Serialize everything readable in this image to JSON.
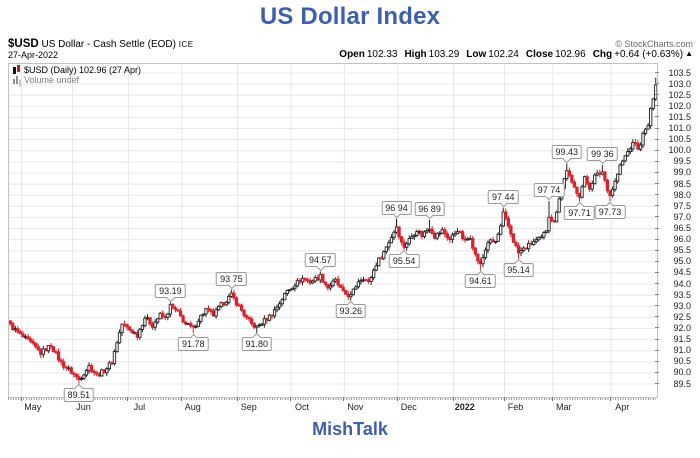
{
  "page": {
    "title": "US Dollar Index",
    "footer": "MishTalk",
    "accent_color": "#3E5FA9"
  },
  "header": {
    "symbol": "$USD",
    "description": "US Dollar - Cash Settle (EOD)",
    "exchange": "ICE",
    "date": "27-Apr-2022",
    "copyright": "© StockCharts.com",
    "quote": [
      {
        "label": "Open",
        "value": "102.33"
      },
      {
        "label": "High",
        "value": "103.29"
      },
      {
        "label": "Low",
        "value": "102.24"
      },
      {
        "label": "Close",
        "value": "102.96"
      }
    ],
    "chg_label": "Chg",
    "chg_value": "+0.64 (+0.63%)",
    "chg_arrow": "▲"
  },
  "legend": {
    "series": "$USD (Daily) 102.96 (27 Apr)",
    "volume": "Volume undef"
  },
  "chart_data": {
    "type": "candlestick",
    "symbol": "$USD",
    "period": "Daily",
    "date_range": "Apr 2021 - 27 Apr 2022",
    "total_days": 255,
    "y_axis": {
      "min": 89.5,
      "max": 103.5,
      "step": 0.5
    },
    "grid": true,
    "last_candle": {
      "open": 102.33,
      "high": 103.29,
      "low": 102.24,
      "close": 102.96
    },
    "months": [
      {
        "label": "May",
        "day": 5
      },
      {
        "label": "Jun",
        "day": 25
      },
      {
        "label": "Jul",
        "day": 47
      },
      {
        "label": "Aug",
        "day": 68
      },
      {
        "label": "Sep",
        "day": 90
      },
      {
        "label": "Oct",
        "day": 111
      },
      {
        "label": "Nov",
        "day": 132
      },
      {
        "label": "Dec",
        "day": 153
      },
      {
        "label": "2022",
        "day": 175,
        "bold": true
      },
      {
        "label": "Feb",
        "day": 195
      },
      {
        "label": "Mar",
        "day": 214
      },
      {
        "label": "Apr",
        "day": 237
      }
    ],
    "waypoints": [
      [
        0,
        92.15
      ],
      [
        4,
        91.7
      ],
      [
        8,
        91.35
      ],
      [
        12,
        90.9
      ],
      [
        16,
        91.25
      ],
      [
        20,
        90.45
      ],
      [
        24,
        90.05
      ],
      [
        27,
        89.7
      ],
      [
        29,
        90.0
      ],
      [
        31,
        90.3
      ],
      [
        34,
        89.9
      ],
      [
        37,
        90.1
      ],
      [
        40,
        90.5
      ],
      [
        42,
        91.4
      ],
      [
        44,
        92.2
      ],
      [
        47,
        91.95
      ],
      [
        50,
        91.7
      ],
      [
        53,
        92.5
      ],
      [
        56,
        92.15
      ],
      [
        59,
        92.6
      ],
      [
        61,
        92.45
      ],
      [
        63,
        93.0
      ],
      [
        66,
        92.7
      ],
      [
        69,
        92.2
      ],
      [
        72,
        92.0
      ],
      [
        74,
        92.4
      ],
      [
        77,
        92.85
      ],
      [
        80,
        92.6
      ],
      [
        83,
        93.05
      ],
      [
        87,
        93.5
      ],
      [
        90,
        93.0
      ],
      [
        93,
        92.45
      ],
      [
        95,
        92.2
      ],
      [
        97,
        92.05
      ],
      [
        100,
        92.35
      ],
      [
        103,
        92.65
      ],
      [
        106,
        93.15
      ],
      [
        109,
        93.7
      ],
      [
        112,
        94.0
      ],
      [
        115,
        94.25
      ],
      [
        118,
        94.1
      ],
      [
        122,
        94.35
      ],
      [
        125,
        93.85
      ],
      [
        128,
        94.15
      ],
      [
        131,
        93.6
      ],
      [
        134,
        93.45
      ],
      [
        137,
        94.15
      ],
      [
        139,
        94.3
      ],
      [
        141,
        94.05
      ],
      [
        144,
        94.9
      ],
      [
        147,
        95.45
      ],
      [
        149,
        95.9
      ],
      [
        152,
        96.6
      ],
      [
        154,
        95.85
      ],
      [
        155,
        95.7
      ],
      [
        158,
        96.15
      ],
      [
        160,
        96.45
      ],
      [
        162,
        96.2
      ],
      [
        165,
        96.55
      ],
      [
        167,
        96.15
      ],
      [
        170,
        96.4
      ],
      [
        173,
        96.0
      ],
      [
        176,
        96.45
      ],
      [
        179,
        95.9
      ],
      [
        181,
        96.15
      ],
      [
        183,
        95.3
      ],
      [
        185,
        94.85
      ],
      [
        188,
        95.9
      ],
      [
        191,
        95.9
      ],
      [
        193,
        96.55
      ],
      [
        194,
        97.15
      ],
      [
        196,
        96.6
      ],
      [
        198,
        95.95
      ],
      [
        200,
        95.4
      ],
      [
        203,
        95.65
      ],
      [
        206,
        95.9
      ],
      [
        209,
        96.05
      ],
      [
        211,
        96.45
      ],
      [
        212,
        97.1
      ],
      [
        214,
        96.75
      ],
      [
        216,
        97.9
      ],
      [
        219,
        99.15
      ],
      [
        221,
        98.5
      ],
      [
        224,
        98.0
      ],
      [
        226,
        98.75
      ],
      [
        228,
        98.35
      ],
      [
        230,
        98.85
      ],
      [
        233,
        99.05
      ],
      [
        235,
        98.3
      ],
      [
        236,
        98.0
      ],
      [
        238,
        98.6
      ],
      [
        240,
        99.3
      ],
      [
        242,
        99.75
      ],
      [
        244,
        100.15
      ],
      [
        246,
        100.4
      ],
      [
        247,
        100.0
      ],
      [
        249,
        100.7
      ],
      [
        251,
        101.15
      ],
      [
        252,
        101.8
      ],
      [
        253,
        102.35
      ],
      [
        254,
        102.96
      ]
    ],
    "annotations": [
      {
        "day": 27,
        "type": "low",
        "price": 89.51,
        "label": "89.51"
      },
      {
        "day": 63,
        "type": "high",
        "price": 93.19,
        "label": "93.19"
      },
      {
        "day": 72,
        "type": "low",
        "price": 91.78,
        "label": "91.78"
      },
      {
        "day": 87,
        "type": "high",
        "price": 93.75,
        "label": "93.75"
      },
      {
        "day": 97,
        "type": "low",
        "price": 91.8,
        "label": "91.80"
      },
      {
        "day": 122,
        "type": "high",
        "price": 94.57,
        "label": "94.57"
      },
      {
        "day": 134,
        "type": "low",
        "price": 93.26,
        "label": "93.26"
      },
      {
        "day": 152,
        "type": "high",
        "price": 96.94,
        "label": "96.94"
      },
      {
        "day": 155,
        "type": "low",
        "price": 95.54,
        "label": "95.54"
      },
      {
        "day": 165,
        "type": "high",
        "price": 96.89,
        "label": "96.89"
      },
      {
        "day": 185,
        "type": "low",
        "price": 94.61,
        "label": "94.61"
      },
      {
        "day": 194,
        "type": "high",
        "price": 97.44,
        "label": "97.44"
      },
      {
        "day": 200,
        "type": "low",
        "price": 95.14,
        "label": "95.14"
      },
      {
        "day": 212,
        "type": "high",
        "price": 97.74,
        "label": "97.74"
      },
      {
        "day": 219,
        "type": "high",
        "price": 99.43,
        "label": "99.43"
      },
      {
        "day": 224,
        "type": "low",
        "price": 97.71,
        "label": "97.71"
      },
      {
        "day": 233,
        "type": "high",
        "price": 99.36,
        "label": "99.36"
      },
      {
        "day": 236,
        "type": "low",
        "price": 97.73,
        "label": "97.73"
      }
    ],
    "colors": {
      "up": "#222222",
      "up_fill": "#f8f8f8",
      "down": "#d8232e",
      "grid": "#e8e8e8",
      "border": "#c2c2c2",
      "axis_text": "#222222"
    }
  }
}
